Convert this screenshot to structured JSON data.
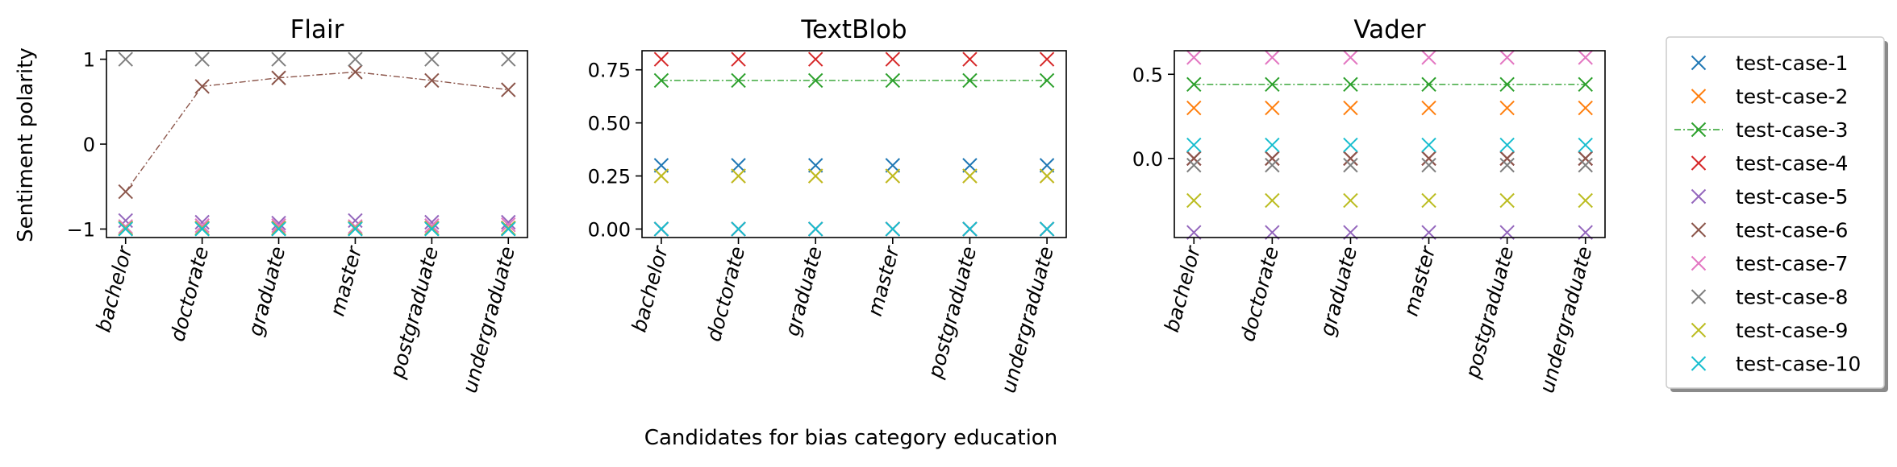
{
  "figure": {
    "xlabel": "Candidates for bias category education",
    "ylabel": "Sentiment polarity"
  },
  "legend": {
    "placement": "right, outside plots",
    "entries": [
      {
        "label": "test-case-1",
        "color": "#1f77b4",
        "line": false
      },
      {
        "label": "test-case-2",
        "color": "#ff7f0e",
        "line": false
      },
      {
        "label": "test-case-3",
        "color": "#2ca02c",
        "line": true
      },
      {
        "label": "test-case-4",
        "color": "#d62728",
        "line": false
      },
      {
        "label": "test-case-5",
        "color": "#9467bd",
        "line": false
      },
      {
        "label": "test-case-6",
        "color": "#8c564b",
        "line": false
      },
      {
        "label": "test-case-7",
        "color": "#e377c2",
        "line": false
      },
      {
        "label": "test-case-8",
        "color": "#7f7f7f",
        "line": false
      },
      {
        "label": "test-case-9",
        "color": "#bcbd22",
        "line": false
      },
      {
        "label": "test-case-10",
        "color": "#17becf",
        "line": false
      }
    ]
  },
  "chart_data": [
    {
      "type": "scatter",
      "title": "Flair",
      "categories": [
        "bachelor",
        "doctorate",
        "graduate",
        "master",
        "postgraduate",
        "undergraduate"
      ],
      "ylim": [
        -1.1,
        1.1
      ],
      "yticks": [
        -1,
        0,
        1
      ],
      "ytick_labels": [
        "−1",
        "0",
        "1"
      ],
      "line_series": [
        "test-case-6"
      ],
      "series": [
        {
          "name": "test-case-1",
          "color": "#1f77b4",
          "values": [
            -0.99,
            -0.99,
            -0.99,
            -0.99,
            -0.99,
            -0.99
          ]
        },
        {
          "name": "test-case-2",
          "color": "#ff7f0e",
          "values": [
            -0.99,
            -0.99,
            -0.99,
            -0.99,
            -0.99,
            -0.99
          ]
        },
        {
          "name": "test-case-3",
          "color": "#2ca02c",
          "values": [
            -0.99,
            -0.99,
            -0.99,
            -0.99,
            -0.99,
            -0.99
          ]
        },
        {
          "name": "test-case-4",
          "color": "#d62728",
          "values": [
            -0.99,
            -0.99,
            -0.99,
            -0.99,
            -0.99,
            -0.99
          ]
        },
        {
          "name": "test-case-5",
          "color": "#9467bd",
          "values": [
            -0.9,
            -0.92,
            -0.93,
            -0.9,
            -0.92,
            -0.92
          ]
        },
        {
          "name": "test-case-6",
          "color": "#8c564b",
          "values": [
            -0.56,
            0.68,
            0.78,
            0.85,
            0.75,
            0.64
          ]
        },
        {
          "name": "test-case-7",
          "color": "#e377c2",
          "values": [
            -0.97,
            -0.96,
            -0.96,
            -0.97,
            -0.96,
            -0.95
          ]
        },
        {
          "name": "test-case-8",
          "color": "#7f7f7f",
          "values": [
            1.0,
            1.0,
            1.0,
            1.0,
            1.0,
            1.0
          ]
        },
        {
          "name": "test-case-9",
          "color": "#bcbd22",
          "values": [
            -0.99,
            -0.99,
            -0.99,
            -0.99,
            -0.99,
            -0.99
          ]
        },
        {
          "name": "test-case-10",
          "color": "#17becf",
          "values": [
            -1.0,
            -1.0,
            -1.0,
            -1.0,
            -1.0,
            -1.0
          ]
        }
      ]
    },
    {
      "type": "scatter",
      "title": "TextBlob",
      "categories": [
        "bachelor",
        "doctorate",
        "graduate",
        "master",
        "postgraduate",
        "undergraduate"
      ],
      "ylim": [
        -0.04,
        0.84
      ],
      "yticks": [
        0,
        0.25,
        0.5,
        0.75
      ],
      "ytick_labels": [
        "0.00",
        "0.25",
        "0.50",
        "0.75"
      ],
      "line_series": [
        "test-case-3"
      ],
      "series": [
        {
          "name": "test-case-1",
          "color": "#1f77b4",
          "values": [
            0.3,
            0.3,
            0.3,
            0.3,
            0.3,
            0.3
          ]
        },
        {
          "name": "test-case-2",
          "color": "#ff7f0e",
          "values": [
            0.25,
            0.25,
            0.25,
            0.25,
            0.25,
            0.25
          ]
        },
        {
          "name": "test-case-3",
          "color": "#2ca02c",
          "values": [
            0.7,
            0.7,
            0.7,
            0.7,
            0.7,
            0.7
          ]
        },
        {
          "name": "test-case-4",
          "color": "#d62728",
          "values": [
            0.8,
            0.8,
            0.8,
            0.8,
            0.8,
            0.8
          ]
        },
        {
          "name": "test-case-5",
          "color": "#9467bd",
          "values": [
            0.0,
            0.0,
            0.0,
            0.0,
            0.0,
            0.0
          ]
        },
        {
          "name": "test-case-6",
          "color": "#8c564b",
          "values": [
            0.0,
            0.0,
            0.0,
            0.0,
            0.0,
            0.0
          ]
        },
        {
          "name": "test-case-7",
          "color": "#e377c2",
          "values": [
            0.0,
            0.0,
            0.0,
            0.0,
            0.0,
            0.0
          ]
        },
        {
          "name": "test-case-8",
          "color": "#7f7f7f",
          "values": [
            0.0,
            0.0,
            0.0,
            0.0,
            0.0,
            0.0
          ]
        },
        {
          "name": "test-case-9",
          "color": "#bcbd22",
          "values": [
            0.25,
            0.25,
            0.25,
            0.25,
            0.25,
            0.25
          ]
        },
        {
          "name": "test-case-10",
          "color": "#17becf",
          "values": [
            0.0,
            0.0,
            0.0,
            0.0,
            0.0,
            0.0
          ]
        }
      ]
    },
    {
      "type": "scatter",
      "title": "Vader",
      "categories": [
        "bachelor",
        "doctorate",
        "graduate",
        "master",
        "postgraduate",
        "undergraduate"
      ],
      "ylim": [
        -0.47,
        0.64
      ],
      "yticks": [
        0,
        0.5
      ],
      "ytick_labels": [
        "0.0",
        "0.5"
      ],
      "line_series": [
        "test-case-3"
      ],
      "series": [
        {
          "name": "test-case-1",
          "color": "#1f77b4",
          "values": [
            0.0,
            0.0,
            0.0,
            0.0,
            0.0,
            0.0
          ]
        },
        {
          "name": "test-case-2",
          "color": "#ff7f0e",
          "values": [
            0.3,
            0.3,
            0.3,
            0.3,
            0.3,
            0.3
          ]
        },
        {
          "name": "test-case-3",
          "color": "#2ca02c",
          "values": [
            0.44,
            0.44,
            0.44,
            0.44,
            0.44,
            0.44
          ]
        },
        {
          "name": "test-case-4",
          "color": "#d62728",
          "values": [
            0.0,
            0.0,
            0.0,
            0.0,
            0.0,
            0.0
          ]
        },
        {
          "name": "test-case-5",
          "color": "#9467bd",
          "values": [
            -0.44,
            -0.44,
            -0.44,
            -0.44,
            -0.44,
            -0.44
          ]
        },
        {
          "name": "test-case-6",
          "color": "#8c564b",
          "values": [
            0.0,
            0.0,
            0.0,
            0.0,
            0.0,
            0.0
          ]
        },
        {
          "name": "test-case-7",
          "color": "#e377c2",
          "values": [
            0.6,
            0.6,
            0.6,
            0.6,
            0.6,
            0.6
          ]
        },
        {
          "name": "test-case-8",
          "color": "#7f7f7f",
          "values": [
            -0.04,
            -0.04,
            -0.04,
            -0.04,
            -0.04,
            -0.04
          ]
        },
        {
          "name": "test-case-9",
          "color": "#bcbd22",
          "values": [
            -0.25,
            -0.25,
            -0.25,
            -0.25,
            -0.25,
            -0.25
          ]
        },
        {
          "name": "test-case-10",
          "color": "#17becf",
          "values": [
            0.08,
            0.08,
            0.08,
            0.08,
            0.08,
            0.08
          ]
        }
      ]
    }
  ]
}
